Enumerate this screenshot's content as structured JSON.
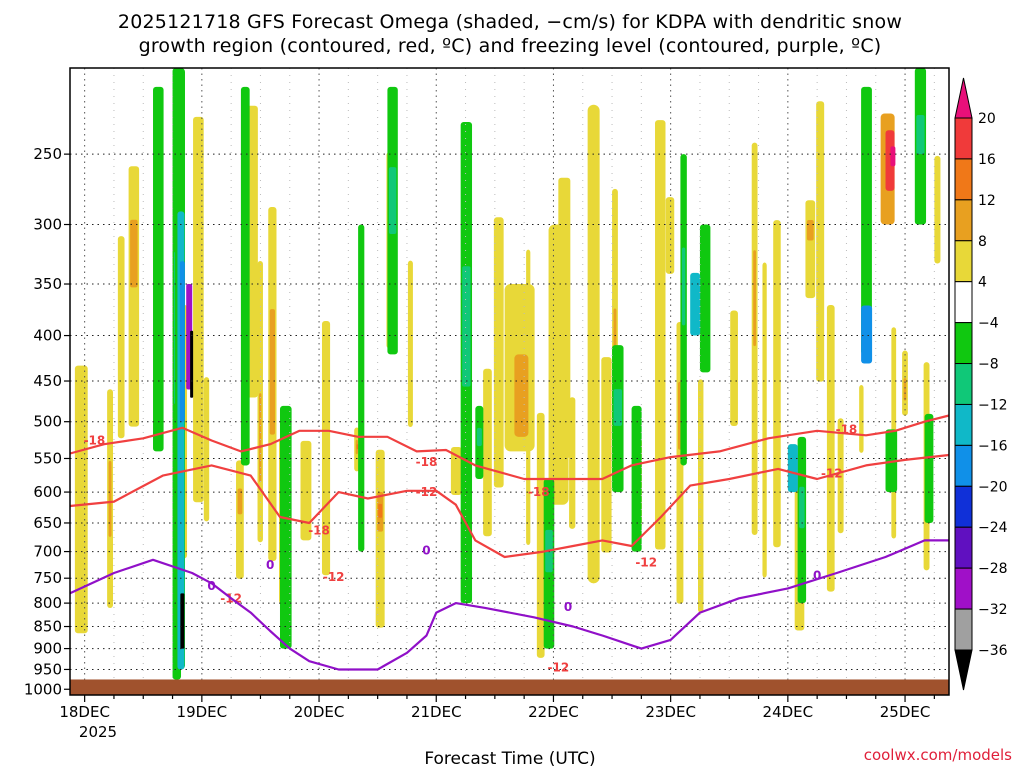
{
  "chart_data": {
    "type": "heatmap",
    "title_line1": "2025121718 GFS Forecast Omega (shaded, −cm/s) for KDPA with dendritic snow",
    "title_line2": "growth region (contoured, red, ºC) and freezing level (contoured, purple, ºC)",
    "xlabel": "Forecast Time (UTC)",
    "ylabel": "",
    "credit": "coolwx.com/models",
    "x_tick_labels": [
      "18DEC",
      "19DEC",
      "20DEC",
      "21DEC",
      "22DEC",
      "23DEC",
      "24DEC",
      "25DEC"
    ],
    "x_tick_hours": [
      0,
      24,
      48,
      72,
      96,
      120,
      144,
      168
    ],
    "x_year_label": "2025",
    "x_range_hours": [
      -3,
      177
    ],
    "y_tick_labels": [
      "250",
      "300",
      "350",
      "400",
      "450",
      "500",
      "550",
      "600",
      "650",
      "700",
      "750",
      "800",
      "850",
      "900",
      "950",
      "1000"
    ],
    "y_range_hpa": [
      200,
      1015
    ],
    "ground_level_hpa": 975,
    "colorbar": {
      "tick_labels": [
        "20",
        "16",
        "12",
        "8",
        "4",
        "−4",
        "−8",
        "−12",
        "−16",
        "−20",
        "−24",
        "−28",
        "−32",
        "−36"
      ],
      "bins": [
        {
          "range": ">20",
          "color": "#e8107a"
        },
        {
          "range": "16 to 20",
          "color": "#f03a3a"
        },
        {
          "range": "12 to 16",
          "color": "#f07818"
        },
        {
          "range": "8 to 12",
          "color": "#e8a020"
        },
        {
          "range": "4 to 8",
          "color": "#e8d838"
        },
        {
          "range": "-4 to 4",
          "color": "#ffffff"
        },
        {
          "range": "-8 to -4",
          "color": "#10c810"
        },
        {
          "range": "-12 to -8",
          "color": "#10c878"
        },
        {
          "range": "-16 to -12",
          "color": "#10b8c8"
        },
        {
          "range": "-20 to -16",
          "color": "#1090e8"
        },
        {
          "range": "-24 to -20",
          "color": "#1030d8"
        },
        {
          "range": "-28 to -24",
          "color": "#6010c0"
        },
        {
          "range": "-32 to -28",
          "color": "#a010c8"
        },
        {
          "range": "-36 to -32",
          "color": "#a0a0a0"
        },
        {
          "range": "<-36",
          "color": "#000000"
        }
      ]
    },
    "contours": [
      {
        "name": "dendritic -18C",
        "color": "#f04040",
        "label": "-18",
        "labels_at": [
          [
            2,
            525
          ],
          [
            70,
            555
          ],
          [
            93,
            600
          ],
          [
            48,
            663
          ],
          [
            156,
            510
          ]
        ],
        "points": [
          [
            -3,
            543
          ],
          [
            4,
            530
          ],
          [
            12,
            522
          ],
          [
            20,
            508
          ],
          [
            26,
            525
          ],
          [
            32,
            540
          ],
          [
            38,
            530
          ],
          [
            44,
            512
          ],
          [
            50,
            512
          ],
          [
            56,
            520
          ],
          [
            62,
            520
          ],
          [
            68,
            540
          ],
          [
            74,
            538
          ],
          [
            80,
            560
          ],
          [
            90,
            580
          ],
          [
            100,
            580
          ],
          [
            106,
            580
          ],
          [
            112,
            560
          ],
          [
            120,
            548
          ],
          [
            130,
            540
          ],
          [
            140,
            522
          ],
          [
            150,
            512
          ],
          [
            160,
            518
          ],
          [
            166,
            512
          ],
          [
            172,
            500
          ],
          [
            177,
            492
          ]
        ]
      },
      {
        "name": "dendritic -12C",
        "color": "#f04040",
        "label": "-12",
        "labels_at": [
          [
            70,
            600
          ],
          [
            30,
            790
          ],
          [
            51,
            748
          ],
          [
            97,
            945
          ],
          [
            153,
            572
          ],
          [
            115,
            720
          ]
        ],
        "points": [
          [
            -3,
            622
          ],
          [
            6,
            615
          ],
          [
            16,
            575
          ],
          [
            26,
            560
          ],
          [
            34,
            575
          ],
          [
            40,
            640
          ],
          [
            46,
            650
          ],
          [
            52,
            600
          ],
          [
            58,
            610
          ],
          [
            66,
            598
          ],
          [
            72,
            598
          ],
          [
            76,
            620
          ],
          [
            80,
            680
          ],
          [
            86,
            710
          ],
          [
            94,
            700
          ],
          [
            100,
            690
          ],
          [
            106,
            680
          ],
          [
            112,
            690
          ],
          [
            118,
            640
          ],
          [
            124,
            590
          ],
          [
            132,
            580
          ],
          [
            142,
            565
          ],
          [
            150,
            580
          ],
          [
            160,
            560
          ],
          [
            168,
            552
          ],
          [
            177,
            545
          ]
        ]
      },
      {
        "name": "freezing level 0C",
        "color": "#9010c8",
        "label": "0",
        "labels_at": [
          [
            26,
            765
          ],
          [
            38,
            725
          ],
          [
            70,
            698
          ],
          [
            99,
            808
          ],
          [
            150,
            745
          ]
        ],
        "points": [
          [
            -3,
            780
          ],
          [
            6,
            740
          ],
          [
            14,
            715
          ],
          [
            22,
            740
          ],
          [
            26,
            760
          ],
          [
            30,
            790
          ],
          [
            34,
            820
          ],
          [
            38,
            860
          ],
          [
            42,
            900
          ],
          [
            46,
            930
          ],
          [
            52,
            950
          ],
          [
            60,
            950
          ],
          [
            66,
            910
          ],
          [
            70,
            870
          ],
          [
            72,
            820
          ],
          [
            76,
            800
          ],
          [
            82,
            810
          ],
          [
            92,
            830
          ],
          [
            100,
            850
          ],
          [
            106,
            870
          ],
          [
            114,
            900
          ],
          [
            120,
            880
          ],
          [
            126,
            820
          ],
          [
            134,
            790
          ],
          [
            144,
            770
          ],
          [
            154,
            740
          ],
          [
            164,
            710
          ],
          [
            172,
            680
          ],
          [
            177,
            680
          ]
        ]
      }
    ]
  }
}
